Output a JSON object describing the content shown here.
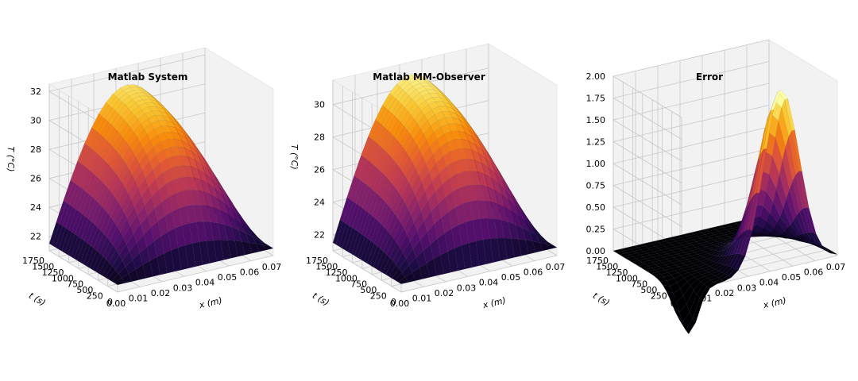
{
  "chart_data": [
    {
      "type": "surface3d",
      "title": "Matlab System",
      "xlabel": "x (m)",
      "ylabel": "t (s)",
      "zlabel": "T (°C)",
      "x_ticks": [
        "0.00",
        "0.01",
        "0.02",
        "0.03",
        "0.04",
        "0.05",
        "0.06",
        "0.07"
      ],
      "t_ticks": [
        "0",
        "250",
        "500",
        "750",
        "1000",
        "1250",
        "1500",
        "1750"
      ],
      "z_ticks": [
        "22",
        "24",
        "26",
        "28",
        "30",
        "32"
      ],
      "xlim": [
        0,
        0.07
      ],
      "tlim": [
        0,
        1750
      ],
      "zlim": [
        21,
        32.5
      ],
      "colormap": "inferno",
      "surface": {
        "base": 21.5,
        "amplitude": 10.0,
        "peak_x": 0.035,
        "rise_time": 500
      }
    },
    {
      "type": "surface3d",
      "title": "Matlab MM-Observer",
      "xlabel": "x (m)",
      "ylabel": "t (s)",
      "zlabel": "T (°C)",
      "x_ticks": [
        "0.00",
        "0.01",
        "0.02",
        "0.03",
        "0.04",
        "0.05",
        "0.06",
        "0.07"
      ],
      "t_ticks": [
        "0",
        "250",
        "500",
        "750",
        "1000",
        "1250",
        "1500",
        "1750"
      ],
      "z_ticks": [
        "22",
        "24",
        "26",
        "28",
        "30"
      ],
      "xlim": [
        0,
        0.07
      ],
      "tlim": [
        0,
        1750
      ],
      "zlim": [
        21,
        31.5
      ],
      "colormap": "inferno",
      "surface": {
        "base": 21.5,
        "amplitude": 9.5,
        "peak_x": 0.035,
        "rise_time": 500
      }
    },
    {
      "type": "surface3d",
      "title": "Error",
      "xlabel": "x (m)",
      "ylabel": "t (s)",
      "zlabel": "",
      "x_ticks": [
        "0.00",
        "0.01",
        "0.02",
        "0.03",
        "0.04",
        "0.05",
        "0.06",
        "0.07"
      ],
      "t_ticks": [
        "0",
        "250",
        "500",
        "750",
        "1000",
        "1250",
        "1500",
        "1750"
      ],
      "z_ticks": [
        "0.00",
        "0.25",
        "0.50",
        "0.75",
        "1.00",
        "1.25",
        "1.50",
        "1.75",
        "2.00"
      ],
      "xlim": [
        0,
        0.07
      ],
      "tlim": [
        0,
        1750
      ],
      "zlim": [
        0,
        2.0
      ],
      "colormap": "inferno",
      "surface": {
        "base": 0.0,
        "amplitude": 2.05,
        "peak_x": 0.045,
        "peak_t": 0,
        "dip": -0.5
      }
    }
  ]
}
